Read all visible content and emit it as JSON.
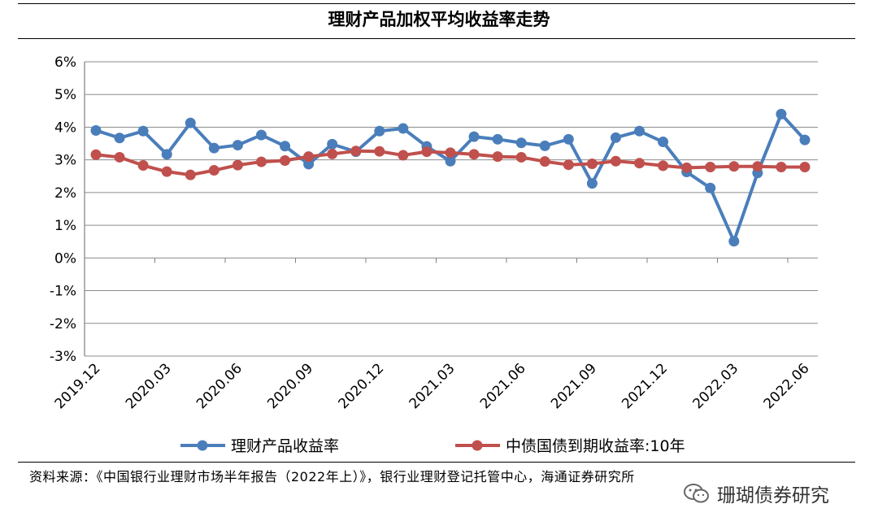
{
  "chart_data": {
    "type": "line",
    "title": "理财产品加权平均收益率走势",
    "y_ticks": [
      "6%",
      "5%",
      "4%",
      "3%",
      "2%",
      "1%",
      "0%",
      "-1%",
      "-2%",
      "-3%"
    ],
    "ylim": [
      -3,
      6
    ],
    "x_labels": [
      "2019.12",
      "2020.03",
      "2020.06",
      "2020.09",
      "2020.12",
      "2021.03",
      "2021.06",
      "2021.09",
      "2021.12",
      "2022.03",
      "2022.06"
    ],
    "legend_position": "bottom",
    "grid": true,
    "series": [
      {
        "name": "理财产品收益率",
        "color": "#4a7ebb",
        "values": [
          3.9,
          3.67,
          3.88,
          3.17,
          4.13,
          3.36,
          3.45,
          3.76,
          3.42,
          2.87,
          3.48,
          3.25,
          3.88,
          3.96,
          3.41,
          2.96,
          3.71,
          3.63,
          3.52,
          3.43,
          3.63,
          2.28,
          3.68,
          3.88,
          3.55,
          2.63,
          2.14,
          0.51,
          2.6,
          4.4,
          3.61
        ]
      },
      {
        "name": "中债国债到期收益率:10年",
        "color": "#c0504d",
        "values": [
          3.16,
          3.08,
          2.83,
          2.64,
          2.54,
          2.68,
          2.84,
          2.94,
          2.98,
          3.1,
          3.18,
          3.27,
          3.26,
          3.14,
          3.25,
          3.22,
          3.17,
          3.1,
          3.08,
          2.95,
          2.85,
          2.88,
          2.96,
          2.9,
          2.82,
          2.76,
          2.78,
          2.8,
          2.8,
          2.78,
          2.78
        ]
      }
    ]
  },
  "footer": {
    "source": "资料来源：《中国银行业理财市场半年报告（2022年上）》，银行业理财登记托管中心，海通证券研究所",
    "watermark": "珊瑚债券研究"
  }
}
